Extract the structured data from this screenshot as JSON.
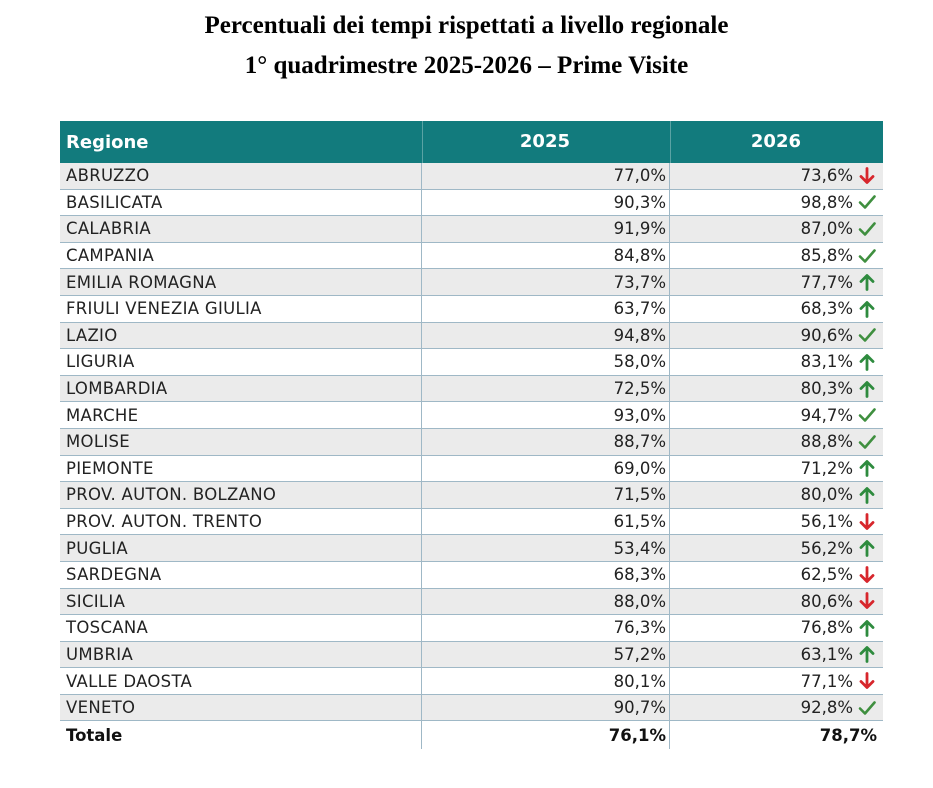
{
  "title_line1": "Percentuali dei tempi rispettati a livello regionale",
  "title_line2": "1° quadrimestre 2025-2026 – Prime Visite",
  "columns": [
    "Regione",
    "2025",
    "2026"
  ],
  "rows": [
    {
      "region": "ABRUZZO",
      "y2025": "77,0%",
      "y2026": "73,6%",
      "status": "down"
    },
    {
      "region": "BASILICATA",
      "y2025": "90,3%",
      "y2026": "98,8%",
      "status": "check"
    },
    {
      "region": "CALABRIA",
      "y2025": "91,9%",
      "y2026": "87,0%",
      "status": "check"
    },
    {
      "region": "CAMPANIA",
      "y2025": "84,8%",
      "y2026": "85,8%",
      "status": "check"
    },
    {
      "region": "EMILIA ROMAGNA",
      "y2025": "73,7%",
      "y2026": "77,7%",
      "status": "up"
    },
    {
      "region": "FRIULI VENEZIA GIULIA",
      "y2025": "63,7%",
      "y2026": "68,3%",
      "status": "up"
    },
    {
      "region": "LAZIO",
      "y2025": "94,8%",
      "y2026": "90,6%",
      "status": "check"
    },
    {
      "region": "LIGURIA",
      "y2025": "58,0%",
      "y2026": "83,1%",
      "status": "up"
    },
    {
      "region": "LOMBARDIA",
      "y2025": "72,5%",
      "y2026": "80,3%",
      "status": "up"
    },
    {
      "region": "MARCHE",
      "y2025": "93,0%",
      "y2026": "94,7%",
      "status": "check"
    },
    {
      "region": "MOLISE",
      "y2025": "88,7%",
      "y2026": "88,8%",
      "status": "check"
    },
    {
      "region": "PIEMONTE",
      "y2025": "69,0%",
      "y2026": "71,2%",
      "status": "up"
    },
    {
      "region": "PROV. AUTON. BOLZANO",
      "y2025": "71,5%",
      "y2026": "80,0%",
      "status": "up"
    },
    {
      "region": "PROV. AUTON. TRENTO",
      "y2025": "61,5%",
      "y2026": "56,1%",
      "status": "down"
    },
    {
      "region": "PUGLIA",
      "y2025": "53,4%",
      "y2026": "56,2%",
      "status": "up"
    },
    {
      "region": "SARDEGNA",
      "y2025": "68,3%",
      "y2026": "62,5%",
      "status": "down"
    },
    {
      "region": "SICILIA",
      "y2025": "88,0%",
      "y2026": "80,6%",
      "status": "down"
    },
    {
      "region": "TOSCANA",
      "y2025": "76,3%",
      "y2026": "76,8%",
      "status": "up"
    },
    {
      "region": "UMBRIA",
      "y2025": "57,2%",
      "y2026": "63,1%",
      "status": "up"
    },
    {
      "region": "VALLE DAOSTA",
      "y2025": "80,1%",
      "y2026": "77,1%",
      "status": "down"
    },
    {
      "region": "VENETO",
      "y2025": "90,7%",
      "y2026": "92,8%",
      "status": "check"
    }
  ],
  "total": {
    "label": "Totale",
    "y2025": "76,1%",
    "y2026": "78,7%"
  },
  "colors": {
    "header_bg": "#127b7d",
    "check": "#3f8f3f",
    "up": "#2e8b3e",
    "down": "#d7262c"
  }
}
